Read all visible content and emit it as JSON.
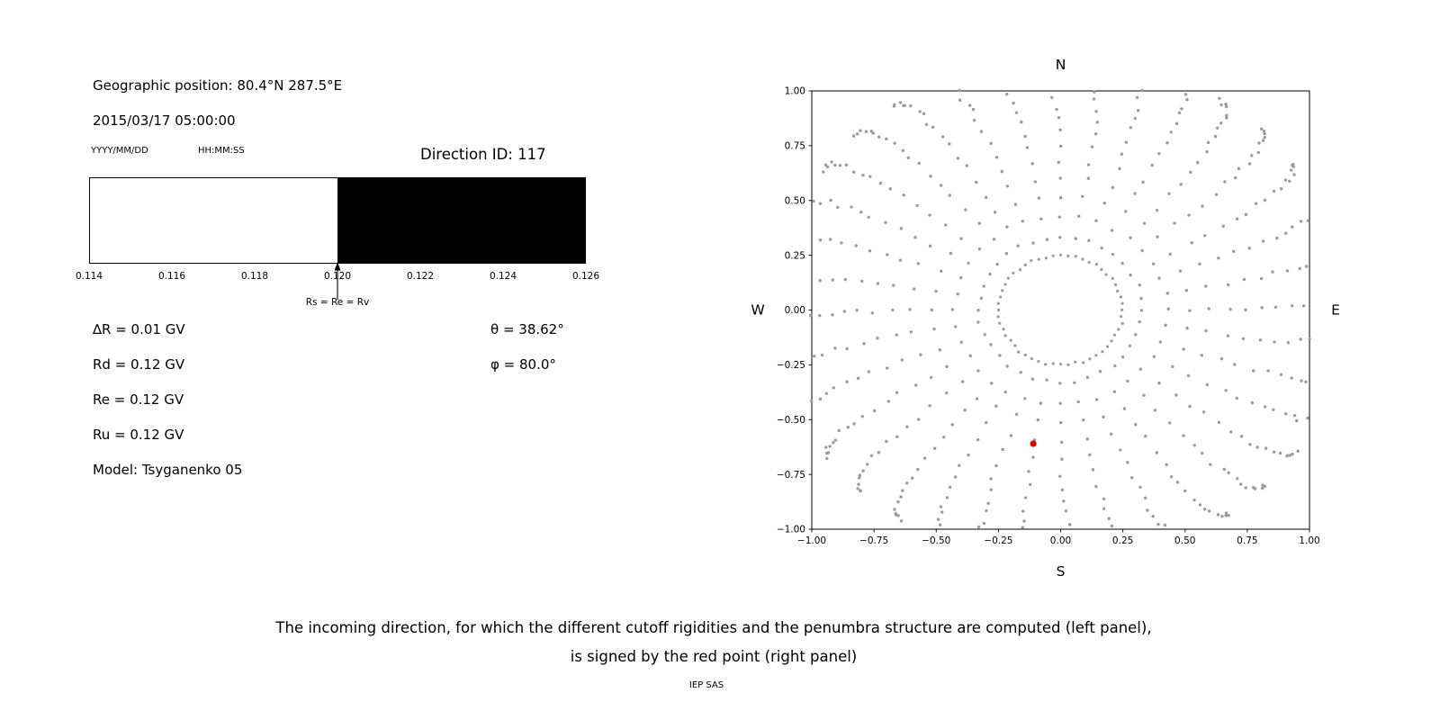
{
  "header": {
    "geo_position": "Geographic position: 80.4°N 287.5°E",
    "datetime": "2015/03/17 05:00:00",
    "date_format": "YYYY/MM/DD",
    "time_format": "HH:MM:SS",
    "direction_id": "Direction ID: 117"
  },
  "info": {
    "delta_r": "∆R = 0.01 GV",
    "rd": "Rd = 0.12 GV",
    "re": "Re = 0.12 GV",
    "ru": "Ru = 0.12 GV",
    "model": "Model: Tsyganenko 05",
    "theta": "θ  = 38.62°",
    "phi": "φ = 80.0°"
  },
  "caption": {
    "line1": "The incoming direction, for which the different cutoff rigidities and the penumbra structure are computed (left panel),",
    "line2": "is signed by the red point (right panel)",
    "credit": "IEP SAS"
  },
  "chart_data": [
    {
      "type": "bar",
      "title": "penumbra structure (cutoff rigidity band)",
      "x_range": [
        0.114,
        0.126
      ],
      "ticks": [
        "0.114",
        "0.116",
        "0.118",
        "0.120",
        "0.122",
        "0.124",
        "0.126"
      ],
      "allowed_region": [
        0.114,
        0.12
      ],
      "forbidden_region": [
        0.12,
        0.126
      ],
      "forbidden_color": "#000000",
      "arrow_x": 0.12,
      "arrow_label": "Rs = Re = Rv"
    },
    {
      "type": "scatter",
      "xlim": [
        -1,
        1
      ],
      "ylim": [
        -1,
        1
      ],
      "x_ticks": [
        "−1.00",
        "−0.75",
        "−0.50",
        "−0.25",
        "0.00",
        "0.25",
        "0.50",
        "0.75",
        "1.00"
      ],
      "y_ticks": [
        "1.00",
        "0.75",
        "0.50",
        "0.25",
        "0.00",
        "−0.25",
        "−0.50",
        "−0.75",
        "−1.00"
      ],
      "direction_labels": {
        "top": "N",
        "bottom": "S",
        "left": "W",
        "right": "E"
      },
      "dot_color": "#9b9b9b",
      "red_point": {
        "x": -0.11,
        "y": -0.61,
        "color": "#e50000"
      },
      "rays": {
        "count": 36,
        "angle_step_deg": 10,
        "r_start": 0.33,
        "r_end": 1.15,
        "dots_per_ray": 19,
        "curvature_deg": 6
      },
      "inner_ring": {
        "radius": 0.25,
        "dots": 52
      }
    }
  ]
}
